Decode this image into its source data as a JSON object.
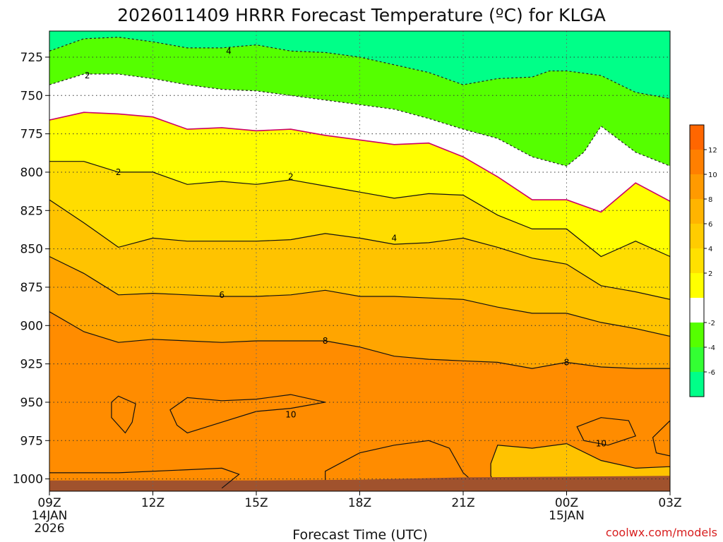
{
  "chart_data": {
    "type": "heatmap",
    "title": "2026011409 HRRR Forecast Temperature (ºC) for KLGA",
    "xlabel": "Forecast Time (UTC)",
    "ylabel": "",
    "credit": "coolwx.com/models",
    "x_range_hours": [
      0,
      18
    ],
    "y_range_hpa": [
      708,
      1008
    ],
    "y_ticks": [
      {
        "value": 725,
        "label": "725"
      },
      {
        "value": 750,
        "label": "750"
      },
      {
        "value": 775,
        "label": "775"
      },
      {
        "value": 800,
        "label": "800"
      },
      {
        "value": 825,
        "label": "825"
      },
      {
        "value": 850,
        "label": "850"
      },
      {
        "value": 875,
        "label": "875"
      },
      {
        "value": 900,
        "label": "900"
      },
      {
        "value": 925,
        "label": "925"
      },
      {
        "value": 950,
        "label": "950"
      },
      {
        "value": 975,
        "label": "975"
      },
      {
        "value": 1000,
        "label": "1000"
      }
    ],
    "x_ticks": [
      {
        "hour": 0,
        "label": "09Z",
        "date": "14JAN",
        "year": "2026"
      },
      {
        "hour": 3,
        "label": "12Z"
      },
      {
        "hour": 6,
        "label": "15Z"
      },
      {
        "hour": 9,
        "label": "18Z"
      },
      {
        "hour": 12,
        "label": "21Z"
      },
      {
        "hour": 15,
        "label": "00Z",
        "date": "15JAN"
      },
      {
        "hour": 18,
        "label": "03Z"
      }
    ],
    "colorbar": {
      "colors": [
        "#00ff88",
        "#33ff33",
        "#55ff00",
        "#ffffff",
        "#ffff00",
        "#ffe000",
        "#ffcc00",
        "#ffb400",
        "#ff9a00",
        "#ff7f00",
        "#ff6600"
      ],
      "labels": [
        "-6",
        "-4",
        "-2",
        "2",
        "4",
        "6",
        "8",
        "10",
        "12"
      ]
    },
    "band_colors": [
      "#00ff88",
      "#55ff00",
      "#ffffff",
      "#ffff00",
      "#ffdd00",
      "#ffc300",
      "#ffa500",
      "#ff8c00"
    ],
    "bands": [
      {
        "range": "< -4",
        "color_index": 0
      },
      {
        "range": "-4 to -2",
        "color_index": 1
      },
      {
        "range": "-2 to 2",
        "color_index": 2
      },
      {
        "range": "2 to 4",
        "color_index": 3
      },
      {
        "range": "4 to 6",
        "color_index": 4
      },
      {
        "range": "6 to 8",
        "color_index": 5
      },
      {
        "range": "8 to 10",
        "color_index": 6
      },
      {
        "range": "10 to 12",
        "color_index": 7
      }
    ],
    "ground_color": "#a0522d",
    "contours": [
      {
        "level": -4,
        "style": "dashed",
        "color": "#222222",
        "points": [
          [
            0,
            721
          ],
          [
            1,
            713
          ],
          [
            2,
            712
          ],
          [
            3,
            715
          ],
          [
            4,
            719
          ],
          [
            5,
            719
          ],
          [
            6,
            717
          ],
          [
            7,
            721
          ],
          [
            8,
            722
          ],
          [
            9,
            725
          ],
          [
            10,
            730
          ],
          [
            11,
            735
          ],
          [
            12,
            743
          ],
          [
            13,
            739
          ],
          [
            14,
            738
          ],
          [
            14.5,
            734
          ],
          [
            15,
            734
          ],
          [
            16,
            737
          ],
          [
            17,
            748
          ],
          [
            18,
            752
          ]
        ]
      },
      {
        "level": -2,
        "style": "dashed",
        "color": "#222222",
        "points": [
          [
            0,
            743
          ],
          [
            1,
            736
          ],
          [
            2,
            736
          ],
          [
            3,
            739
          ],
          [
            4,
            743
          ],
          [
            5,
            746
          ],
          [
            6,
            747
          ],
          [
            7,
            750
          ],
          [
            8,
            753
          ],
          [
            9,
            756
          ],
          [
            10,
            759
          ],
          [
            11,
            765
          ],
          [
            12,
            772
          ],
          [
            13,
            778
          ],
          [
            14,
            790
          ],
          [
            15,
            796
          ],
          [
            15.5,
            787
          ],
          [
            16,
            770
          ],
          [
            17,
            787
          ],
          [
            18,
            796
          ]
        ]
      },
      {
        "level": 0,
        "style": "solid",
        "color": "#cc0066",
        "points": [
          [
            0,
            766
          ],
          [
            1,
            761
          ],
          [
            2,
            762
          ],
          [
            3,
            764
          ],
          [
            4,
            772
          ],
          [
            5,
            771
          ],
          [
            6,
            773
          ],
          [
            7,
            772
          ],
          [
            8,
            776
          ],
          [
            9,
            779
          ],
          [
            10,
            782
          ],
          [
            11,
            781
          ],
          [
            12,
            790
          ],
          [
            13,
            803
          ],
          [
            14,
            818
          ],
          [
            15,
            818
          ],
          [
            16,
            826
          ],
          [
            17,
            807
          ],
          [
            18,
            819
          ]
        ]
      },
      {
        "level": 2,
        "style": "solid",
        "color": "#111111",
        "points": [
          [
            0,
            793
          ],
          [
            1,
            793
          ],
          [
            2,
            800
          ],
          [
            3,
            800
          ],
          [
            4,
            808
          ],
          [
            5,
            806
          ],
          [
            6,
            808
          ],
          [
            7,
            805
          ],
          [
            8,
            809
          ],
          [
            9,
            813
          ],
          [
            10,
            817
          ],
          [
            11,
            814
          ],
          [
            12,
            815
          ],
          [
            13,
            828
          ],
          [
            14,
            837
          ],
          [
            15,
            837
          ],
          [
            16,
            855
          ],
          [
            17,
            845
          ],
          [
            18,
            855
          ]
        ]
      },
      {
        "level": 4,
        "style": "solid",
        "color": "#111111",
        "points": [
          [
            0,
            818
          ],
          [
            1,
            833
          ],
          [
            2,
            849
          ],
          [
            3,
            843
          ],
          [
            4,
            845
          ],
          [
            5,
            845
          ],
          [
            6,
            845
          ],
          [
            7,
            844
          ],
          [
            8,
            840
          ],
          [
            9,
            843
          ],
          [
            10,
            847
          ],
          [
            11,
            846
          ],
          [
            12,
            843
          ],
          [
            13,
            849
          ],
          [
            14,
            856
          ],
          [
            15,
            860
          ],
          [
            16,
            874
          ],
          [
            17,
            878
          ],
          [
            18,
            883
          ]
        ]
      },
      {
        "level": 6,
        "style": "solid",
        "color": "#111111",
        "points": [
          [
            0,
            855
          ],
          [
            1,
            866
          ],
          [
            2,
            880
          ],
          [
            3,
            879
          ],
          [
            4,
            880
          ],
          [
            5,
            881
          ],
          [
            6,
            881
          ],
          [
            7,
            880
          ],
          [
            8,
            877
          ],
          [
            9,
            881
          ],
          [
            10,
            881
          ],
          [
            11,
            882
          ],
          [
            12,
            883
          ],
          [
            13,
            888
          ],
          [
            14,
            892
          ],
          [
            15,
            892
          ],
          [
            16,
            898
          ],
          [
            17,
            902
          ],
          [
            18,
            907
          ]
        ]
      },
      {
        "level": 8,
        "style": "solid",
        "color": "#111111",
        "points": [
          [
            0,
            891
          ],
          [
            1,
            904
          ],
          [
            2,
            911
          ],
          [
            3,
            909
          ],
          [
            4,
            910
          ],
          [
            5,
            911
          ],
          [
            6,
            910
          ],
          [
            7,
            910
          ],
          [
            8,
            910
          ],
          [
            9,
            914
          ],
          [
            10,
            920
          ],
          [
            11,
            922
          ],
          [
            12,
            923
          ],
          [
            13,
            924
          ],
          [
            14,
            928
          ],
          [
            15,
            924
          ],
          [
            16,
            927
          ],
          [
            17,
            928
          ],
          [
            18,
            928
          ]
        ]
      },
      {
        "level": 10,
        "style": "closed",
        "color": "#111111",
        "fill_index": 7,
        "points": [
          [
            1.8,
            950
          ],
          [
            2,
            946
          ],
          [
            2.5,
            951
          ],
          [
            2.4,
            963
          ],
          [
            2.2,
            970
          ],
          [
            1.8,
            960
          ]
        ]
      },
      {
        "level": 10,
        "style": "closed",
        "color": "#111111",
        "fill_index": 7,
        "points": [
          [
            3.5,
            955
          ],
          [
            4,
            947
          ],
          [
            5,
            949
          ],
          [
            6,
            948
          ],
          [
            7,
            945
          ],
          [
            8,
            950
          ],
          [
            7,
            954
          ],
          [
            6,
            956
          ],
          [
            5,
            963
          ],
          [
            4,
            970
          ],
          [
            3.7,
            965
          ]
        ]
      },
      {
        "level": 10,
        "style": "closed",
        "color": "#111111",
        "fill_index": 7,
        "points": [
          [
            8,
            995
          ],
          [
            9,
            983
          ],
          [
            10,
            978
          ],
          [
            11,
            975
          ],
          [
            11.6,
            980
          ],
          [
            12,
            996
          ],
          [
            12.5,
            1006
          ],
          [
            8,
            1006
          ]
        ]
      },
      {
        "level": 10,
        "style": "closed",
        "color": "#111111",
        "fill_index": 7,
        "points": [
          [
            15.3,
            966
          ],
          [
            16,
            960
          ],
          [
            16.8,
            962
          ],
          [
            17,
            972
          ],
          [
            16.2,
            978
          ],
          [
            15.5,
            975
          ]
        ]
      },
      {
        "level": 10,
        "style": "closed",
        "color": "#111111",
        "fill_index": 7,
        "points": [
          [
            17.5,
            973
          ],
          [
            18,
            962
          ],
          [
            18,
            985
          ],
          [
            17.6,
            983
          ]
        ]
      },
      {
        "level": 8,
        "style": "closed",
        "color": "#111111",
        "fill_index": 5,
        "points": [
          [
            12.8,
            990
          ],
          [
            13,
            978
          ],
          [
            14,
            980
          ],
          [
            15,
            977
          ],
          [
            16,
            988
          ],
          [
            17,
            993
          ],
          [
            18,
            992
          ],
          [
            18,
            1006
          ],
          [
            13,
            1006
          ],
          [
            12.8,
            998
          ]
        ]
      },
      {
        "level": 10,
        "style": "solid",
        "color": "#111111",
        "points": [
          [
            0,
            996
          ],
          [
            2,
            996
          ],
          [
            4,
            994
          ],
          [
            5,
            993
          ],
          [
            5.5,
            997
          ],
          [
            5,
            1006
          ]
        ]
      }
    ],
    "contour_labels": [
      {
        "text": "4",
        "x": 5.2,
        "y": 721
      },
      {
        "text": "2",
        "x": 1.1,
        "y": 737
      },
      {
        "text": "2",
        "x": 2.0,
        "y": 800
      },
      {
        "text": "2",
        "x": 7.0,
        "y": 803
      },
      {
        "text": "4",
        "x": 10.0,
        "y": 843
      },
      {
        "text": "6",
        "x": 5.0,
        "y": 880
      },
      {
        "text": "8",
        "x": 8.0,
        "y": 910
      },
      {
        "text": "8",
        "x": 15.0,
        "y": 924
      },
      {
        "text": "10",
        "x": 7.0,
        "y": 958
      },
      {
        "text": "10",
        "x": 16.0,
        "y": 977
      }
    ]
  }
}
